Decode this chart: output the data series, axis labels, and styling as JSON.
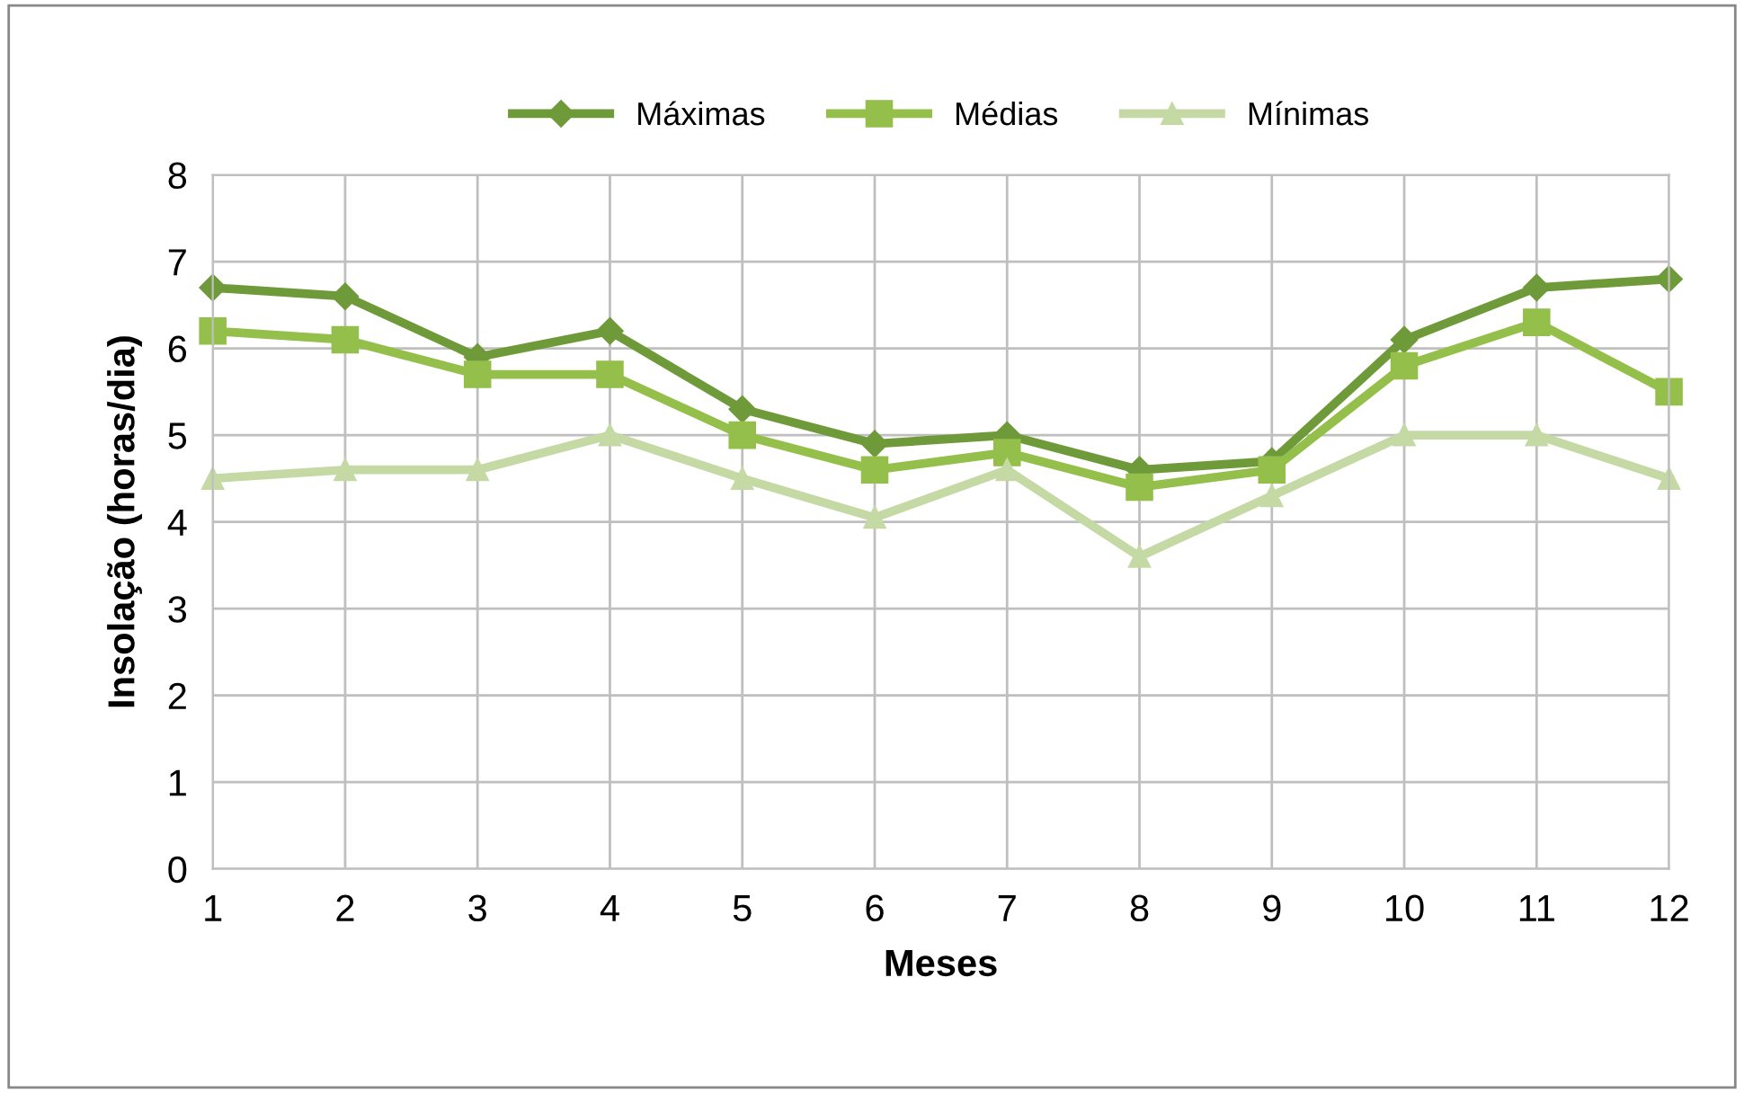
{
  "chart_data": {
    "type": "line",
    "xlabel": "Meses",
    "ylabel": "Insolação (horas/dia)",
    "x": [
      1,
      2,
      3,
      4,
      5,
      6,
      7,
      8,
      9,
      10,
      11,
      12
    ],
    "series": [
      {
        "name": "Máximas",
        "color": "#6f9a3a",
        "marker": "diamond",
        "values": [
          6.7,
          6.6,
          5.9,
          6.2,
          5.3,
          4.9,
          5.0,
          4.6,
          4.7,
          6.1,
          6.7,
          6.8
        ]
      },
      {
        "name": "Médias",
        "color": "#93bf4a",
        "marker": "square",
        "values": [
          6.2,
          6.1,
          5.7,
          5.7,
          5.0,
          4.6,
          4.8,
          4.4,
          4.6,
          5.8,
          6.3,
          5.5
        ]
      },
      {
        "name": "Mínimas",
        "color": "#c5d9a5",
        "marker": "triangle",
        "values": [
          4.5,
          4.6,
          4.6,
          5.0,
          4.5,
          4.05,
          4.6,
          3.6,
          4.3,
          5.0,
          5.0,
          4.5
        ]
      }
    ],
    "xlim": [
      1,
      12
    ],
    "xticks": [
      1,
      2,
      3,
      4,
      5,
      6,
      7,
      8,
      9,
      10,
      11,
      12
    ],
    "ylim": [
      0,
      8
    ],
    "yticks": [
      0,
      1,
      2,
      3,
      4,
      5,
      6,
      7,
      8
    ],
    "grid": true,
    "legend": "top",
    "line_style": "solid"
  }
}
